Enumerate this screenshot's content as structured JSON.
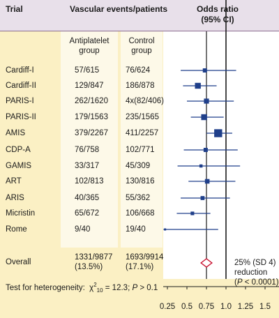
{
  "header": {
    "trial_label": "Trial",
    "events_label": "Vascular events/patients",
    "odds_label": "Odds ratio",
    "ci_label": "(95% CI)"
  },
  "subheader": {
    "antiplatelet": [
      "Antiplatelet",
      "group"
    ],
    "control": [
      "Control",
      "group"
    ]
  },
  "rows": [
    {
      "trial": "Cardiff-I",
      "antiplatelet": "57/615",
      "control": "76/624"
    },
    {
      "trial": "Cardiff-II",
      "antiplatelet": "129/847",
      "control": "186/878"
    },
    {
      "trial": "PARIS-I",
      "antiplatelet": "262/1620",
      "control": "4x(82/406)"
    },
    {
      "trial": "PARIS-II",
      "antiplatelet": "179/1563",
      "control": "235/1565"
    },
    {
      "trial": "AMIS",
      "antiplatelet": "379/2267",
      "control": "411/2257"
    },
    {
      "trial": "CDP-A",
      "antiplatelet": "76/758",
      "control": "102/771"
    },
    {
      "trial": "GAMIS",
      "antiplatelet": "33/317",
      "control": "45/309"
    },
    {
      "trial": "ART",
      "antiplatelet": "102/813",
      "control": "130/816"
    },
    {
      "trial": "ARIS",
      "antiplatelet": "40/365",
      "control": "55/362"
    },
    {
      "trial": "Micristin",
      "antiplatelet": "65/672",
      "control": "106/668"
    },
    {
      "trial": "Rome",
      "antiplatelet": "9/40",
      "control": "19/40"
    }
  ],
  "overall": {
    "label": "Overall",
    "antiplatelet": [
      "1331/9877",
      "(13.5%)"
    ],
    "control": [
      "1693/9914",
      "(17.1%)"
    ],
    "reduction": [
      "25% (SD 4)",
      "reduction",
      "(P < 0.0001)"
    ]
  },
  "heterogeneity": "Test for heterogeneity:  χ²₁₀ = 12.3; P > 0.1",
  "chart_data": {
    "type": "forest",
    "xlim": [
      0.2,
      1.55
    ],
    "xticks": [
      "0.25",
      "0.5",
      "0.75",
      "1.0",
      "1.25",
      "1.5"
    ],
    "xtick_values": [
      0.25,
      0.5,
      0.75,
      1.0,
      1.25,
      1.5
    ],
    "reference_line": 1.0,
    "pooled_line": 0.75,
    "marker_color": "#1f3f8a",
    "diamond_color": "#c8102e",
    "points": [
      {
        "trial": "Cardiff-I",
        "or": 0.73,
        "lo": 0.42,
        "hi": 1.13,
        "weight": 1.0
      },
      {
        "trial": "Cardiff-II",
        "or": 0.64,
        "lo": 0.45,
        "hi": 0.88,
        "weight": 1.4
      },
      {
        "trial": "PARIS-I",
        "or": 0.75,
        "lo": 0.5,
        "hi": 1.1,
        "weight": 1.2
      },
      {
        "trial": "PARIS-II",
        "or": 0.72,
        "lo": 0.55,
        "hi": 0.97,
        "weight": 1.4
      },
      {
        "trial": "AMIS",
        "or": 0.9,
        "lo": 0.75,
        "hi": 1.08,
        "weight": 1.9
      },
      {
        "trial": "CDP-A",
        "or": 0.74,
        "lo": 0.46,
        "hi": 1.15,
        "weight": 1.0
      },
      {
        "trial": "GAMIS",
        "or": 0.68,
        "lo": 0.38,
        "hi": 1.18,
        "weight": 0.75
      },
      {
        "trial": "ART",
        "or": 0.76,
        "lo": 0.52,
        "hi": 1.12,
        "weight": 1.1
      },
      {
        "trial": "ARIS",
        "or": 0.7,
        "lo": 0.42,
        "hi": 1.05,
        "weight": 0.95
      },
      {
        "trial": "Micristin",
        "or": 0.57,
        "lo": 0.37,
        "hi": 0.8,
        "weight": 0.85
      },
      {
        "trial": "Rome",
        "or": 0.22,
        "lo": 0.2,
        "hi": 0.9,
        "weight": 0.5
      }
    ],
    "overall": {
      "or": 0.75,
      "lo": 0.68,
      "hi": 0.82
    }
  }
}
